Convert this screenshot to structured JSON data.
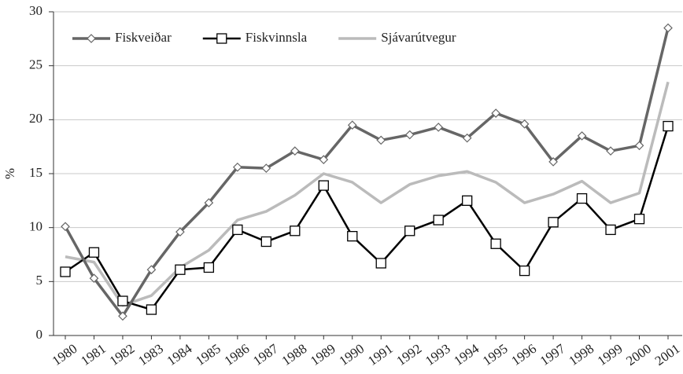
{
  "chart_data": {
    "type": "line",
    "ylabel": "%",
    "categories": [
      "1980",
      "1981",
      "1982",
      "1983",
      "1984",
      "1985",
      "1986",
      "1987",
      "1988",
      "1989",
      "1990",
      "1991",
      "1992",
      "1993",
      "1994",
      "1995",
      "1996",
      "1997",
      "1998",
      "1999",
      "2000",
      "2001"
    ],
    "series": [
      {
        "name": "Fiskveiðar",
        "color": "#666666",
        "marker": "diamond",
        "values": [
          10.1,
          5.3,
          1.8,
          6.1,
          9.6,
          12.3,
          15.6,
          15.5,
          17.1,
          16.3,
          19.5,
          18.1,
          18.6,
          19.3,
          18.3,
          20.6,
          19.6,
          16.1,
          18.5,
          17.1,
          17.6,
          28.5
        ]
      },
      {
        "name": "Fiskvinnsla",
        "color": "#000000",
        "marker": "square",
        "values": [
          5.9,
          7.7,
          3.2,
          2.4,
          6.1,
          6.3,
          9.8,
          8.7,
          9.7,
          13.9,
          9.2,
          6.7,
          9.7,
          10.7,
          12.5,
          8.5,
          6.0,
          10.5,
          12.7,
          9.8,
          10.8,
          19.4
        ]
      },
      {
        "name": "Sjávarútvegur",
        "color": "#bbbbbb",
        "marker": "none",
        "values": [
          7.3,
          6.8,
          2.8,
          3.7,
          6.3,
          7.9,
          10.7,
          11.5,
          13.0,
          15.0,
          14.2,
          12.3,
          14.0,
          14.8,
          15.2,
          14.2,
          12.3,
          13.1,
          14.3,
          12.3,
          13.2,
          23.5
        ]
      }
    ],
    "ylim": [
      0,
      30
    ],
    "yticks": [
      0,
      5,
      10,
      15,
      20,
      25,
      30
    ],
    "grid": true,
    "legend": "top-left"
  }
}
